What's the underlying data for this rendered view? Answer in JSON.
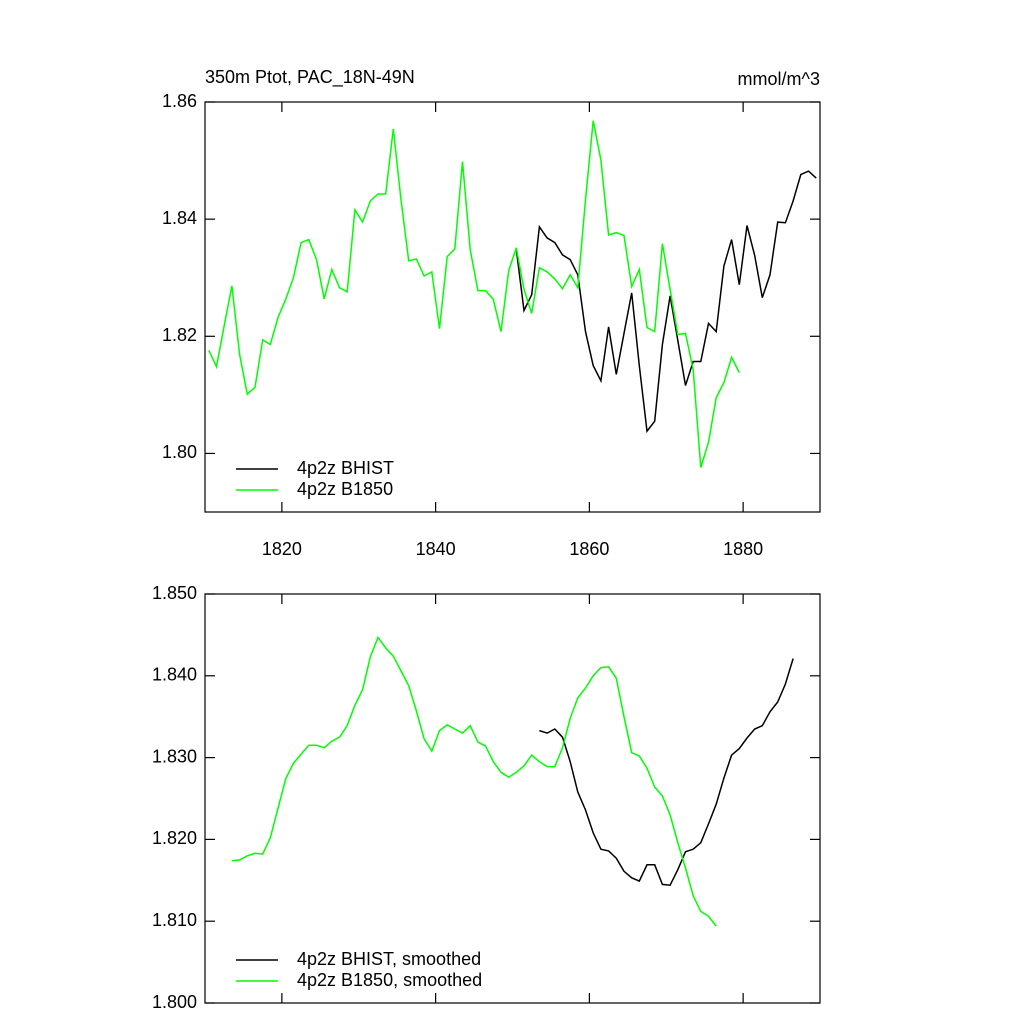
{
  "chart_data": [
    {
      "type": "line",
      "title": "350m Ptot, PAC_18N-49N",
      "y_units": "mmol/m^3",
      "xlim": [
        1810,
        1890
      ],
      "xticks": [
        1820,
        1840,
        1860,
        1880
      ],
      "xtick_labels": true,
      "ylim": [
        1.79,
        1.86
      ],
      "yticks": [
        {
          "value": 1.8,
          "label": "1.80"
        },
        1.82,
        1.84,
        1.86
      ],
      "legend": "lower left",
      "series": [
        {
          "name": "4p2z BHIST",
          "color": "#000000",
          "x": [
            1850.5,
            1851.5,
            1852.5,
            1853.5,
            1854.5,
            1855.5,
            1856.5,
            1857.5,
            1858.5,
            1859.5,
            1860.5,
            1861.5,
            1862.5,
            1863.5,
            1864.5,
            1865.5,
            1866.5,
            1867.5,
            1868.5,
            1869.5,
            1870.5,
            1871.5,
            1872.5,
            1873.5,
            1874.5,
            1875.5,
            1876.5,
            1877.5,
            1878.5,
            1879.5,
            1880.5,
            1881.5,
            1882.5,
            1883.5,
            1884.5,
            1885.5,
            1886.5,
            1887.5,
            1888.5,
            1889.5
          ],
          "values": [
            1.8348,
            1.8244,
            1.8271,
            1.8387,
            1.8368,
            1.836,
            1.8339,
            1.8331,
            1.8305,
            1.8208,
            1.815,
            1.8124,
            1.8216,
            1.8135,
            1.8205,
            1.8274,
            1.815,
            1.8038,
            1.8055,
            1.8186,
            1.8269,
            1.8193,
            1.8116,
            1.8157,
            1.8157,
            1.8222,
            1.8208,
            1.832,
            1.8365,
            1.8288,
            1.8389,
            1.8338,
            1.8266,
            1.8305,
            1.8395,
            1.8394,
            1.8431,
            1.8476,
            1.8482,
            1.847
          ]
        },
        {
          "name": "4p2z B1850",
          "color": "#00ff00",
          "x": [
            1810.5,
            1811.5,
            1812.5,
            1813.5,
            1814.5,
            1815.5,
            1816.5,
            1817.5,
            1818.5,
            1819.5,
            1820.5,
            1821.5,
            1822.5,
            1823.5,
            1824.5,
            1825.5,
            1826.5,
            1827.5,
            1828.5,
            1829.5,
            1830.5,
            1831.5,
            1832.5,
            1833.5,
            1834.5,
            1835.5,
            1836.5,
            1837.5,
            1838.5,
            1839.5,
            1840.5,
            1841.5,
            1842.5,
            1843.5,
            1844.5,
            1845.5,
            1846.5,
            1847.5,
            1848.5,
            1849.5,
            1850.5,
            1851.5,
            1852.5,
            1853.5,
            1854.5,
            1855.5,
            1856.5,
            1857.5,
            1858.5,
            1859.5,
            1860.5,
            1861.5,
            1862.5,
            1863.5,
            1864.5,
            1865.5,
            1866.5,
            1867.5,
            1868.5,
            1869.5,
            1870.5,
            1871.5,
            1872.5,
            1873.5,
            1874.5,
            1875.5,
            1876.5,
            1877.5,
            1878.5,
            1879.5
          ],
          "values": [
            1.8176,
            1.8148,
            1.8218,
            1.8286,
            1.8169,
            1.8101,
            1.8113,
            1.8194,
            1.8186,
            1.8232,
            1.8263,
            1.83,
            1.836,
            1.8365,
            1.8331,
            1.8264,
            1.8314,
            1.8283,
            1.8276,
            1.8416,
            1.8395,
            1.8431,
            1.8443,
            1.8443,
            1.8554,
            1.8433,
            1.8329,
            1.8332,
            1.8303,
            1.831,
            1.8213,
            1.8336,
            1.8349,
            1.8498,
            1.8348,
            1.8278,
            1.8278,
            1.8263,
            1.8208,
            1.8312,
            1.8351,
            1.828,
            1.8239,
            1.8317,
            1.831,
            1.8298,
            1.8281,
            1.8305,
            1.8283,
            1.8433,
            1.8568,
            1.8501,
            1.8373,
            1.8377,
            1.8372,
            1.8285,
            1.8314,
            1.8215,
            1.8208,
            1.8358,
            1.828,
            1.8203,
            1.8205,
            1.8143,
            1.7976,
            1.8019,
            1.8095,
            1.8121,
            1.8164,
            1.8138
          ]
        }
      ]
    },
    {
      "type": "line",
      "xlim": [
        1810,
        1890
      ],
      "xticks": [
        1820,
        1840,
        1860,
        1880
      ],
      "xtick_labels": false,
      "ylim": [
        1.8,
        1.85
      ],
      "yticks": [
        {
          "value": 1.8,
          "label": "1.800"
        },
        {
          "value": 1.81,
          "label": "1.810"
        },
        {
          "value": 1.82,
          "label": "1.820"
        },
        {
          "value": 1.83,
          "label": "1.830"
        },
        {
          "value": 1.84,
          "label": "1.840"
        },
        {
          "value": 1.85,
          "label": "1.850"
        }
      ],
      "legend": "lower left",
      "series": [
        {
          "name": "4p2z BHIST, smoothed",
          "color": "#000000",
          "x": [
            1853.5,
            1854.5,
            1855.5,
            1856.5,
            1857.5,
            1858.5,
            1859.5,
            1860.5,
            1861.5,
            1862.5,
            1863.5,
            1864.5,
            1865.5,
            1866.5,
            1867.5,
            1868.5,
            1869.5,
            1870.5,
            1871.5,
            1872.5,
            1873.5,
            1874.5,
            1875.5,
            1876.5,
            1877.5,
            1878.5,
            1879.5,
            1880.5,
            1881.5,
            1882.5,
            1883.5,
            1884.5,
            1885.5,
            1886.5
          ],
          "values": [
            1.8333,
            1.833,
            1.8335,
            1.8325,
            1.8295,
            1.8258,
            1.8236,
            1.8208,
            1.8188,
            1.8186,
            1.8177,
            1.8161,
            1.8153,
            1.8149,
            1.8169,
            1.8169,
            1.8145,
            1.8144,
            1.8163,
            1.8185,
            1.8188,
            1.8196,
            1.8219,
            1.8243,
            1.8275,
            1.8303,
            1.8311,
            1.8324,
            1.8335,
            1.8339,
            1.8356,
            1.8368,
            1.839,
            1.8421
          ]
        },
        {
          "name": "4p2z B1850, smoothed",
          "color": "#00ff00",
          "x": [
            1813.5,
            1814.5,
            1815.5,
            1816.5,
            1817.5,
            1818.5,
            1819.5,
            1820.5,
            1821.5,
            1822.5,
            1823.5,
            1824.5,
            1825.5,
            1826.5,
            1827.5,
            1828.5,
            1829.5,
            1830.5,
            1831.5,
            1832.5,
            1833.5,
            1834.5,
            1835.5,
            1836.5,
            1837.5,
            1838.5,
            1839.5,
            1840.5,
            1841.5,
            1842.5,
            1843.5,
            1844.5,
            1845.5,
            1846.5,
            1847.5,
            1848.5,
            1849.5,
            1850.5,
            1851.5,
            1852.5,
            1853.5,
            1854.5,
            1855.5,
            1856.5,
            1857.5,
            1858.5,
            1859.5,
            1860.5,
            1861.5,
            1862.5,
            1863.5,
            1864.5,
            1865.5,
            1866.5,
            1867.5,
            1868.5,
            1869.5,
            1870.5,
            1871.5,
            1872.5,
            1873.5,
            1874.5,
            1875.5,
            1876.5
          ],
          "values": [
            1.8174,
            1.8175,
            1.818,
            1.8183,
            1.8182,
            1.8202,
            1.8238,
            1.8274,
            1.8293,
            1.8304,
            1.8315,
            1.8315,
            1.8312,
            1.832,
            1.8325,
            1.8339,
            1.8364,
            1.8383,
            1.8423,
            1.8447,
            1.8434,
            1.8424,
            1.8406,
            1.8388,
            1.8357,
            1.8323,
            1.8308,
            1.8333,
            1.834,
            1.8335,
            1.833,
            1.8339,
            1.8319,
            1.8314,
            1.8295,
            1.8282,
            1.8276,
            1.8282,
            1.829,
            1.8303,
            1.8295,
            1.8289,
            1.8289,
            1.8312,
            1.8348,
            1.8373,
            1.8385,
            1.84,
            1.841,
            1.8411,
            1.8397,
            1.835,
            1.8306,
            1.8302,
            1.8287,
            1.8264,
            1.8253,
            1.823,
            1.8196,
            1.8165,
            1.8131,
            1.8112,
            1.8106,
            1.8094
          ]
        }
      ]
    }
  ]
}
